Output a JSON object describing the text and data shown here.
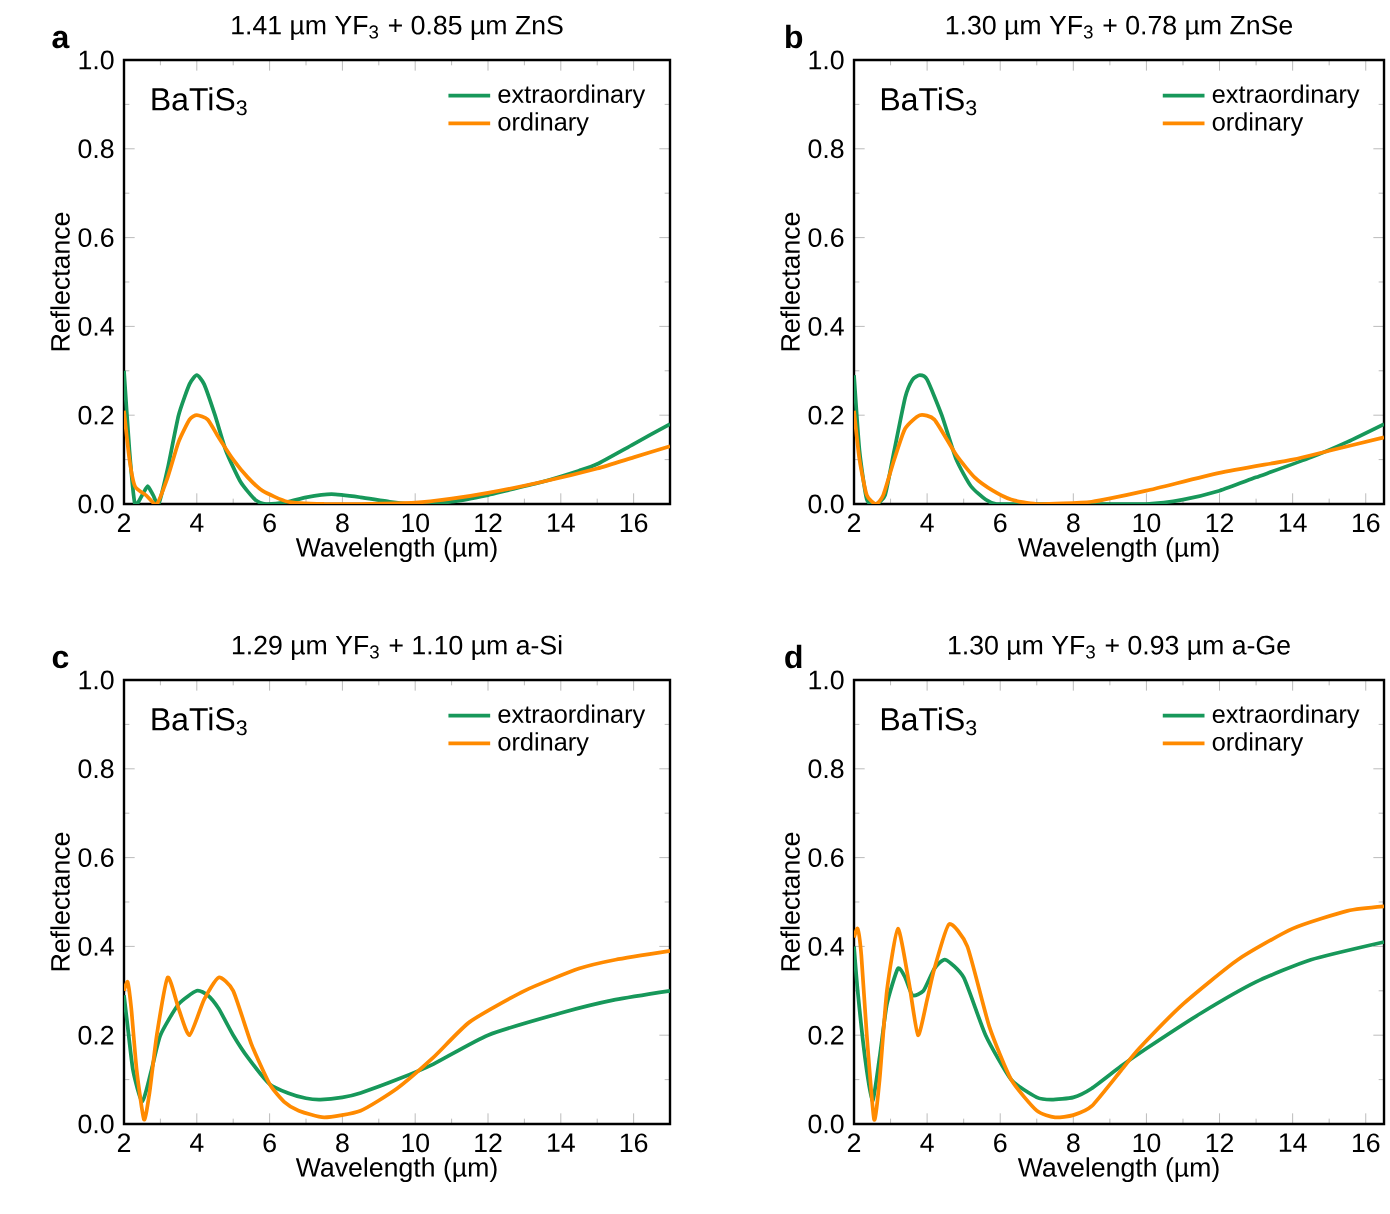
{
  "chart_data": [
    {
      "type": "line",
      "title": "1.41 µm YF$_{3}$ + 0.85 µm ZnS",
      "xlabel": "Wavelength (µm)",
      "ylabel": "Reflectance",
      "annotations": [
        "a",
        "BaTiS$_{3}$"
      ],
      "xlim": [
        2,
        17
      ],
      "ylim": [
        0,
        1
      ],
      "xticks": [
        2,
        4,
        6,
        8,
        10,
        12,
        14,
        16
      ],
      "yticks": [
        {
          "value": 0,
          "label": "0.0"
        },
        {
          "value": 0.2,
          "label": "0.2"
        },
        {
          "value": 0.4,
          "label": "0.4"
        },
        {
          "value": 0.6,
          "label": "0.6"
        },
        {
          "value": 0.8,
          "label": "0.8"
        },
        {
          "value": 1,
          "label": "1.0"
        }
      ],
      "legend": "top right",
      "grid": false,
      "series": [
        {
          "name": "extraordinary",
          "color": "#17985a",
          "x": [
            2.0,
            2.15,
            2.3,
            2.5,
            2.65,
            2.8,
            2.95,
            3.2,
            3.5,
            3.8,
            4.0,
            4.2,
            4.5,
            4.8,
            5.2,
            5.6,
            5.9,
            6.5,
            7.0,
            7.7,
            8.5,
            9.3,
            10.0,
            11.0,
            12.0,
            12.5,
            13.5,
            14.5,
            15.0,
            16.0,
            17.0
          ],
          "values": [
            0.3,
            0.12,
            0.0,
            0.02,
            0.04,
            0.02,
            0.0,
            0.08,
            0.2,
            0.27,
            0.29,
            0.27,
            0.2,
            0.12,
            0.05,
            0.01,
            0.0,
            0.005,
            0.015,
            0.022,
            0.015,
            0.005,
            0.0,
            0.005,
            0.02,
            0.03,
            0.05,
            0.075,
            0.09,
            0.135,
            0.18
          ]
        },
        {
          "name": "ordinary",
          "color": "#ff8a00",
          "x": [
            2.0,
            2.15,
            2.3,
            2.6,
            2.9,
            3.2,
            3.5,
            3.8,
            4.0,
            4.3,
            4.6,
            5.0,
            5.4,
            5.8,
            6.5,
            7.5,
            8.5,
            10.0,
            11.0,
            12.0,
            13.5,
            15.0,
            16.0,
            17.0
          ],
          "values": [
            0.21,
            0.1,
            0.04,
            0.02,
            0.0,
            0.06,
            0.14,
            0.19,
            0.2,
            0.19,
            0.15,
            0.1,
            0.06,
            0.03,
            0.005,
            0.0,
            0.0,
            0.003,
            0.012,
            0.025,
            0.05,
            0.08,
            0.105,
            0.13
          ]
        }
      ]
    },
    {
      "type": "line",
      "title": "1.30 µm YF$_{3}$ + 0.78 µm ZnSe",
      "xlabel": "Wavelength (µm)",
      "ylabel": "Reflectance",
      "annotations": [
        "b",
        "BaTiS$_{3}$"
      ],
      "xlim": [
        2,
        16.5
      ],
      "ylim": [
        0,
        1
      ],
      "xticks": [
        2,
        4,
        6,
        8,
        10,
        12,
        14,
        16
      ],
      "yticks": [
        {
          "value": 0,
          "label": "0.0"
        },
        {
          "value": 0.2,
          "label": "0.2"
        },
        {
          "value": 0.4,
          "label": "0.4"
        },
        {
          "value": 0.6,
          "label": "0.6"
        },
        {
          "value": 0.8,
          "label": "0.8"
        },
        {
          "value": 1,
          "label": "1.0"
        }
      ],
      "legend": "top right",
      "grid": false,
      "series": [
        {
          "name": "extraordinary",
          "color": "#17985a",
          "x": [
            2.0,
            2.15,
            2.35,
            2.6,
            2.85,
            3.1,
            3.4,
            3.6,
            3.8,
            4.0,
            4.4,
            4.8,
            5.2,
            5.6,
            5.9,
            7.0,
            8.5,
            10.0,
            11.0,
            12.0,
            13.0,
            14.5,
            15.5,
            16.5
          ],
          "values": [
            0.29,
            0.12,
            0.01,
            0.0,
            0.02,
            0.12,
            0.24,
            0.28,
            0.29,
            0.28,
            0.2,
            0.1,
            0.04,
            0.01,
            0.0,
            0.0,
            0.0,
            0.0,
            0.01,
            0.03,
            0.06,
            0.105,
            0.14,
            0.18
          ]
        },
        {
          "name": "ordinary",
          "color": "#ff8a00",
          "x": [
            2.0,
            2.15,
            2.35,
            2.6,
            2.8,
            3.1,
            3.4,
            3.8,
            4.2,
            4.8,
            5.3,
            5.8,
            6.3,
            7.0,
            8.5,
            10.0,
            12.0,
            14.0,
            15.0,
            16.5
          ],
          "values": [
            0.21,
            0.1,
            0.02,
            0.0,
            0.02,
            0.1,
            0.17,
            0.2,
            0.19,
            0.11,
            0.06,
            0.03,
            0.01,
            0.0,
            0.005,
            0.03,
            0.07,
            0.1,
            0.12,
            0.15
          ]
        }
      ]
    },
    {
      "type": "line",
      "title": "1.29 µm YF$_{3}$ + 1.10 µm a-Si",
      "xlabel": "Wavelength (µm)",
      "ylabel": "Reflectance",
      "annotations": [
        "c",
        "BaTiS$_{3}$"
      ],
      "xlim": [
        2,
        17
      ],
      "ylim": [
        0,
        1
      ],
      "xticks": [
        2,
        4,
        6,
        8,
        10,
        12,
        14,
        16
      ],
      "yticks": [
        {
          "value": 0,
          "label": "0.0"
        },
        {
          "value": 0.2,
          "label": "0.2"
        },
        {
          "value": 0.4,
          "label": "0.4"
        },
        {
          "value": 0.6,
          "label": "0.6"
        },
        {
          "value": 0.8,
          "label": "0.8"
        },
        {
          "value": 1,
          "label": "1.0"
        }
      ],
      "legend": "top right",
      "grid": false,
      "series": [
        {
          "name": "extraordinary",
          "color": "#17985a",
          "x": [
            2.0,
            2.1,
            2.25,
            2.5,
            2.75,
            3.0,
            3.5,
            4.0,
            4.3,
            4.6,
            5.0,
            5.4,
            6.0,
            6.5,
            7.0,
            7.4,
            8.0,
            8.5,
            9.5,
            10.5,
            12.0,
            14.0,
            15.5,
            17.0
          ],
          "values": [
            0.29,
            0.22,
            0.12,
            0.05,
            0.12,
            0.2,
            0.27,
            0.3,
            0.29,
            0.26,
            0.2,
            0.15,
            0.09,
            0.07,
            0.058,
            0.055,
            0.06,
            0.07,
            0.1,
            0.135,
            0.2,
            0.25,
            0.28,
            0.3
          ]
        },
        {
          "name": "ordinary",
          "color": "#ff8a00",
          "x": [
            2.0,
            2.1,
            2.2,
            2.35,
            2.55,
            2.7,
            2.9,
            3.2,
            3.5,
            3.8,
            4.2,
            4.6,
            5.0,
            5.5,
            6.0,
            6.4,
            6.8,
            7.5,
            8.5,
            9.5,
            10.5,
            11.5,
            13.0,
            14.5,
            15.5,
            17.0
          ],
          "values": [
            0.3,
            0.32,
            0.26,
            0.12,
            0.01,
            0.07,
            0.2,
            0.33,
            0.26,
            0.2,
            0.28,
            0.33,
            0.3,
            0.18,
            0.09,
            0.05,
            0.03,
            0.015,
            0.03,
            0.08,
            0.15,
            0.23,
            0.3,
            0.35,
            0.37,
            0.39
          ]
        }
      ]
    },
    {
      "type": "line",
      "title": "1.30 µm YF$_{3}$ + 0.93 µm a-Ge",
      "xlabel": "Wavelength (µm)",
      "ylabel": "Reflectance",
      "annotations": [
        "d",
        "BaTiS$_{3}$"
      ],
      "xlim": [
        2,
        16.5
      ],
      "ylim": [
        0,
        1
      ],
      "xticks": [
        2,
        4,
        6,
        8,
        10,
        12,
        14,
        16
      ],
      "yticks": [
        {
          "value": 0,
          "label": "0.0"
        },
        {
          "value": 0.2,
          "label": "0.2"
        },
        {
          "value": 0.4,
          "label": "0.4"
        },
        {
          "value": 0.6,
          "label": "0.6"
        },
        {
          "value": 0.8,
          "label": "0.8"
        },
        {
          "value": 1,
          "label": "1.0"
        }
      ],
      "legend": "top right",
      "grid": false,
      "series": [
        {
          "name": "extraordinary",
          "color": "#17985a",
          "x": [
            2.0,
            2.1,
            2.3,
            2.5,
            2.7,
            2.9,
            3.2,
            3.4,
            3.6,
            3.9,
            4.2,
            4.5,
            5.0,
            5.6,
            6.3,
            7.0,
            7.4,
            8.0,
            8.5,
            9.3,
            10.0,
            11.5,
            13.0,
            14.5,
            16.5
          ],
          "values": [
            0.4,
            0.3,
            0.15,
            0.05,
            0.15,
            0.27,
            0.35,
            0.33,
            0.29,
            0.3,
            0.35,
            0.37,
            0.33,
            0.2,
            0.1,
            0.06,
            0.055,
            0.06,
            0.08,
            0.13,
            0.17,
            0.25,
            0.32,
            0.37,
            0.41
          ]
        },
        {
          "name": "ordinary",
          "color": "#ff8a00",
          "x": [
            2.0,
            2.1,
            2.2,
            2.35,
            2.55,
            2.7,
            2.9,
            3.2,
            3.5,
            3.75,
            4.0,
            4.2,
            4.6,
            5.1,
            5.7,
            6.3,
            7.0,
            7.5,
            8.0,
            8.5,
            9.3,
            9.8,
            11.0,
            12.5,
            14.0,
            15.5,
            16.5
          ],
          "values": [
            0.42,
            0.44,
            0.38,
            0.2,
            0.01,
            0.1,
            0.3,
            0.44,
            0.32,
            0.2,
            0.28,
            0.35,
            0.45,
            0.4,
            0.22,
            0.1,
            0.03,
            0.015,
            0.02,
            0.04,
            0.12,
            0.17,
            0.27,
            0.37,
            0.44,
            0.48,
            0.49
          ]
        }
      ]
    }
  ]
}
